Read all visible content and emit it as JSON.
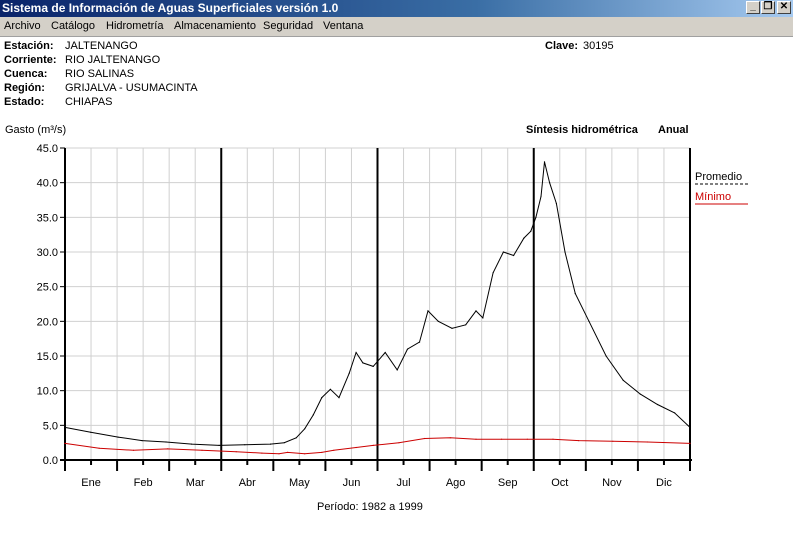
{
  "window": {
    "title": "Sistema de Información de Aguas Superficiales  versión 1.0",
    "buttons": [
      "minimize",
      "restore",
      "close"
    ]
  },
  "menu": [
    "Archivo",
    "Catálogo",
    "Hidrometría",
    "Almacenamiento",
    "Seguridad",
    "Ventana"
  ],
  "station": {
    "estacion_label": "Estación:",
    "estacion": "JALTENANGO",
    "corriente_label": "Corriente:",
    "corriente": "RIO JALTENANGO",
    "cuenca_label": "Cuenca:",
    "cuenca": "RIO SALINAS",
    "region_label": "Región:",
    "region": "GRIJALVA - USUMACINTA",
    "estado_label": "Estado:",
    "estado": "CHIAPAS",
    "clave_label": "Clave:",
    "clave": "30195"
  },
  "chart_header": {
    "ylabel": "Gasto (m³/s)",
    "title": "Síntesis hidrométrica",
    "mode": "Anual",
    "period": "Período:  1982 a 1999"
  },
  "chart_data": {
    "type": "line",
    "title": "Síntesis hidrométrica  Anual",
    "ylabel": "Gasto (m³/s)",
    "xlabel": "",
    "ylim": [
      0,
      45
    ],
    "yticks": [
      "45.0",
      "40.0",
      "35.0",
      "30.0",
      "25.0",
      "20.0",
      "15.0",
      "10.0",
      "5.0",
      "0.0"
    ],
    "months": [
      "Ene",
      "Feb",
      "Mar",
      "Abr",
      "May",
      "Jun",
      "Jul",
      "Ago",
      "Sep",
      "Oct",
      "Nov",
      "Dic"
    ],
    "grid": true,
    "legend_position": "right",
    "series": [
      {
        "name": "Promedio",
        "color": "#000000",
        "points": [
          [
            0,
            4.7
          ],
          [
            15,
            4.0
          ],
          [
            31,
            3.3
          ],
          [
            45,
            2.8
          ],
          [
            59,
            2.6
          ],
          [
            74,
            2.3
          ],
          [
            90,
            2.1
          ],
          [
            105,
            2.2
          ],
          [
            120,
            2.3
          ],
          [
            128,
            2.5
          ],
          [
            135,
            3.2
          ],
          [
            140,
            4.5
          ],
          [
            145,
            6.5
          ],
          [
            150,
            9.0
          ],
          [
            155,
            10.2
          ],
          [
            160,
            9.0
          ],
          [
            166,
            12.5
          ],
          [
            170,
            15.5
          ],
          [
            174,
            14.0
          ],
          [
            180,
            13.5
          ],
          [
            187,
            15.5
          ],
          [
            194,
            13.0
          ],
          [
            200,
            16.0
          ],
          [
            207,
            17.0
          ],
          [
            212,
            21.5
          ],
          [
            218,
            20.0
          ],
          [
            226,
            19.0
          ],
          [
            234,
            19.5
          ],
          [
            240,
            21.5
          ],
          [
            244,
            20.5
          ],
          [
            250,
            27.0
          ],
          [
            256,
            30.0
          ],
          [
            262,
            29.5
          ],
          [
            268,
            32.0
          ],
          [
            272,
            33.0
          ],
          [
            275,
            35.0
          ],
          [
            278,
            38.0
          ],
          [
            280,
            43.0
          ],
          [
            283,
            40.0
          ],
          [
            287,
            37.0
          ],
          [
            292,
            30.0
          ],
          [
            298,
            24.0
          ],
          [
            306,
            20.0
          ],
          [
            316,
            15.0
          ],
          [
            326,
            11.5
          ],
          [
            336,
            9.5
          ],
          [
            346,
            8.0
          ],
          [
            356,
            6.8
          ],
          [
            365,
            4.7
          ]
        ]
      },
      {
        "name": "Mínimo",
        "color": "#cc0000",
        "points": [
          [
            0,
            2.4
          ],
          [
            20,
            1.7
          ],
          [
            40,
            1.4
          ],
          [
            60,
            1.6
          ],
          [
            80,
            1.4
          ],
          [
            100,
            1.2
          ],
          [
            115,
            1.0
          ],
          [
            125,
            0.9
          ],
          [
            130,
            1.1
          ],
          [
            140,
            0.9
          ],
          [
            150,
            1.1
          ],
          [
            157,
            1.4
          ],
          [
            170,
            1.8
          ],
          [
            180,
            2.1
          ],
          [
            195,
            2.5
          ],
          [
            210,
            3.1
          ],
          [
            225,
            3.2
          ],
          [
            240,
            3.0
          ],
          [
            255,
            3.0
          ],
          [
            270,
            3.0
          ],
          [
            285,
            3.0
          ],
          [
            300,
            2.8
          ],
          [
            320,
            2.7
          ],
          [
            340,
            2.6
          ],
          [
            365,
            2.4
          ]
        ]
      }
    ]
  }
}
